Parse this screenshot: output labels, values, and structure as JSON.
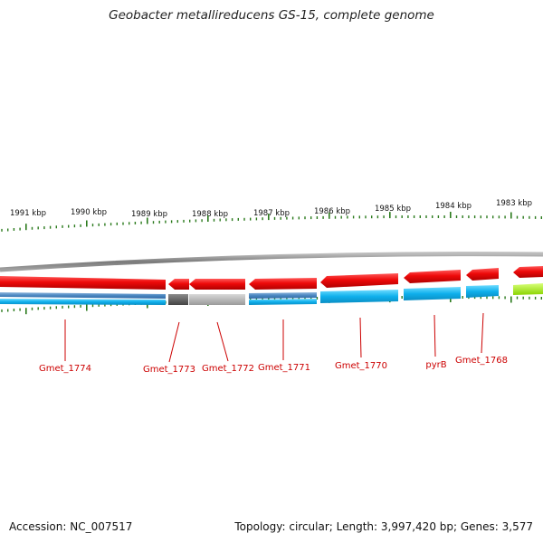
{
  "title": "Geobacter metallireducens GS-15, complete genome",
  "footer": {
    "accession": "Accession: NC_007517",
    "summary": "Topology: circular; Length: 3,997,420 bp; Genes: 3,577"
  },
  "colors": {
    "forward_cds": "#e8000e",
    "reverse_cds": "#12b6ea",
    "gene_label": "#cc0000",
    "tick": "#2a7a1c",
    "backbone": "#8a8a8a"
  },
  "scale_labels": [
    "1991 kbp",
    "1990 kbp",
    "1989 kbp",
    "1988 kbp",
    "1987 kbp",
    "1986 kbp",
    "1985 kbp",
    "1984 kbp",
    "1983 kbp"
  ],
  "genes": [
    {
      "label": "Gmet_1774"
    },
    {
      "label": "Gmet_1773"
    },
    {
      "label": "Gmet_1772"
    },
    {
      "label": "Gmet_1771"
    },
    {
      "label": "Gmet_1770"
    },
    {
      "label": "pyrB"
    },
    {
      "label": "Gmet_1768"
    }
  ]
}
